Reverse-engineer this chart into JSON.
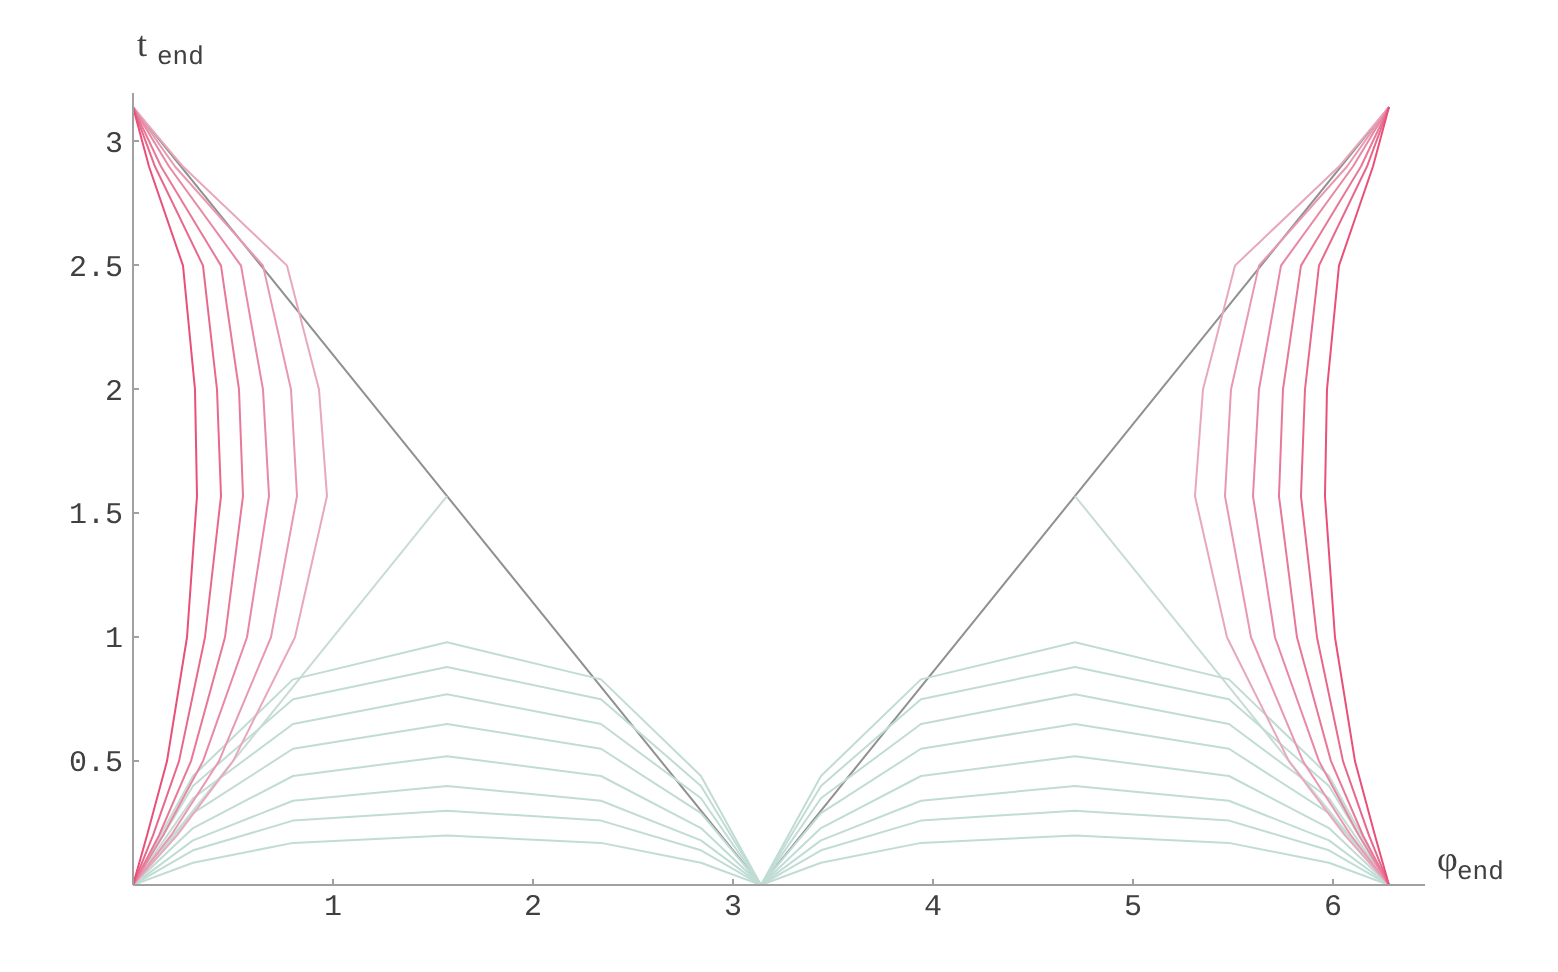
{
  "chart_data": {
    "type": "line",
    "xlabel": "φ$_{end}$",
    "ylabel": "t$_{end}$",
    "xlim": [
      0,
      6.46
    ],
    "ylim": [
      0,
      3.2
    ],
    "xticks": [
      1,
      2,
      3,
      4,
      5,
      6
    ],
    "yticks": [
      0.5,
      1,
      1.5,
      2,
      2.5,
      3
    ],
    "grid": false,
    "marker": "none",
    "line_style": "solid",
    "series": [
      {
        "color": "#909090",
        "x": [
          0,
          3.14
        ],
        "values": [
          3.14,
          0
        ]
      },
      {
        "color": "#909090",
        "x": [
          3.14,
          6.28
        ],
        "values": [
          0,
          3.14
        ]
      },
      {
        "color": "#c8dcd4",
        "x": [
          0,
          1.57
        ],
        "values": [
          0,
          1.57
        ]
      },
      {
        "color": "#c8dcd4",
        "x": [
          4.71,
          6.28
        ],
        "values": [
          1.57,
          0
        ]
      },
      {
        "color": "#c0dcd4",
        "x": [
          0,
          0.3,
          0.8,
          1.57,
          2.34,
          2.84,
          3.14
        ],
        "values": [
          0,
          0.09,
          0.17,
          0.2,
          0.17,
          0.09,
          0
        ]
      },
      {
        "color": "#c0dcd4",
        "x": [
          0,
          0.3,
          0.8,
          1.57,
          2.34,
          2.84,
          3.14
        ],
        "values": [
          0,
          0.14,
          0.26,
          0.3,
          0.26,
          0.14,
          0
        ]
      },
      {
        "color": "#c0dcd4",
        "x": [
          0,
          0.3,
          0.8,
          1.57,
          2.34,
          2.84,
          3.14
        ],
        "values": [
          0,
          0.18,
          0.34,
          0.4,
          0.34,
          0.18,
          0
        ]
      },
      {
        "color": "#c0dcd4",
        "x": [
          0,
          0.3,
          0.8,
          1.57,
          2.34,
          2.84,
          3.14
        ],
        "values": [
          0,
          0.23,
          0.44,
          0.52,
          0.44,
          0.23,
          0
        ]
      },
      {
        "color": "#c0dcd4",
        "x": [
          0,
          0.3,
          0.8,
          1.57,
          2.34,
          2.84,
          3.14
        ],
        "values": [
          0,
          0.29,
          0.55,
          0.65,
          0.55,
          0.29,
          0
        ]
      },
      {
        "color": "#c0dcd4",
        "x": [
          0,
          0.3,
          0.8,
          1.57,
          2.34,
          2.84,
          3.14
        ],
        "values": [
          0,
          0.35,
          0.65,
          0.77,
          0.65,
          0.35,
          0
        ]
      },
      {
        "color": "#c0dcd4",
        "x": [
          0,
          0.3,
          0.8,
          1.57,
          2.34,
          2.84,
          3.14
        ],
        "values": [
          0,
          0.4,
          0.75,
          0.88,
          0.75,
          0.4,
          0
        ]
      },
      {
        "color": "#c0dcd4",
        "x": [
          0,
          0.3,
          0.8,
          1.57,
          2.34,
          2.84,
          3.14
        ],
        "values": [
          0,
          0.44,
          0.83,
          0.98,
          0.83,
          0.44,
          0
        ]
      },
      {
        "color": "#c0dcd4",
        "x": [
          3.14,
          3.44,
          3.94,
          4.71,
          5.48,
          5.98,
          6.28
        ],
        "values": [
          0,
          0.09,
          0.17,
          0.2,
          0.17,
          0.09,
          0
        ]
      },
      {
        "color": "#c0dcd4",
        "x": [
          3.14,
          3.44,
          3.94,
          4.71,
          5.48,
          5.98,
          6.28
        ],
        "values": [
          0,
          0.14,
          0.26,
          0.3,
          0.26,
          0.14,
          0
        ]
      },
      {
        "color": "#c0dcd4",
        "x": [
          3.14,
          3.44,
          3.94,
          4.71,
          5.48,
          5.98,
          6.28
        ],
        "values": [
          0,
          0.18,
          0.34,
          0.4,
          0.34,
          0.18,
          0
        ]
      },
      {
        "color": "#c0dcd4",
        "x": [
          3.14,
          3.44,
          3.94,
          4.71,
          5.48,
          5.98,
          6.28
        ],
        "values": [
          0,
          0.23,
          0.44,
          0.52,
          0.44,
          0.23,
          0
        ]
      },
      {
        "color": "#c0dcd4",
        "x": [
          3.14,
          3.44,
          3.94,
          4.71,
          5.48,
          5.98,
          6.28
        ],
        "values": [
          0,
          0.29,
          0.55,
          0.65,
          0.55,
          0.29,
          0
        ]
      },
      {
        "color": "#c0dcd4",
        "x": [
          3.14,
          3.44,
          3.94,
          4.71,
          5.48,
          5.98,
          6.28
        ],
        "values": [
          0,
          0.35,
          0.65,
          0.77,
          0.65,
          0.35,
          0
        ]
      },
      {
        "color": "#c0dcd4",
        "x": [
          3.14,
          3.44,
          3.94,
          4.71,
          5.48,
          5.98,
          6.28
        ],
        "values": [
          0,
          0.4,
          0.75,
          0.88,
          0.75,
          0.4,
          0
        ]
      },
      {
        "color": "#c0dcd4",
        "x": [
          3.14,
          3.44,
          3.94,
          4.71,
          5.48,
          5.98,
          6.28
        ],
        "values": [
          0,
          0.44,
          0.83,
          0.98,
          0.83,
          0.44,
          0
        ]
      },
      {
        "color": "#e8a8bc",
        "x": [
          0,
          0.25,
          0.77,
          0.93,
          0.97,
          0.81,
          0.5,
          0.22,
          0
        ],
        "values": [
          3.14,
          2.9,
          2.5,
          2.0,
          1.57,
          1.0,
          0.5,
          0.2,
          0
        ]
      },
      {
        "color": "#e898b0",
        "x": [
          0,
          0.21,
          0.65,
          0.79,
          0.82,
          0.69,
          0.43,
          0.19,
          0
        ],
        "values": [
          3.14,
          2.9,
          2.5,
          2.0,
          1.57,
          1.0,
          0.5,
          0.2,
          0
        ]
      },
      {
        "color": "#e888a4",
        "x": [
          0,
          0.18,
          0.54,
          0.65,
          0.68,
          0.57,
          0.35,
          0.15,
          0
        ],
        "values": [
          3.14,
          2.9,
          2.5,
          2.0,
          1.57,
          1.0,
          0.5,
          0.2,
          0
        ]
      },
      {
        "color": "#e87898",
        "x": [
          0,
          0.14,
          0.44,
          0.53,
          0.55,
          0.46,
          0.29,
          0.13,
          0
        ],
        "values": [
          3.14,
          2.9,
          2.5,
          2.0,
          1.57,
          1.0,
          0.5,
          0.2,
          0
        ]
      },
      {
        "color": "#e8688c",
        "x": [
          0,
          0.11,
          0.35,
          0.42,
          0.44,
          0.36,
          0.23,
          0.1,
          0
        ],
        "values": [
          3.14,
          2.9,
          2.5,
          2.0,
          1.57,
          1.0,
          0.5,
          0.2,
          0
        ]
      },
      {
        "color": "#e85078",
        "x": [
          0,
          0.08,
          0.25,
          0.31,
          0.32,
          0.27,
          0.17,
          0.07,
          0
        ],
        "values": [
          3.14,
          2.9,
          2.5,
          2.0,
          1.57,
          1.0,
          0.5,
          0.2,
          0
        ]
      },
      {
        "color": "#e8a8bc",
        "x": [
          6.28,
          6.03,
          5.51,
          5.35,
          5.31,
          5.47,
          5.78,
          6.06,
          6.28
        ],
        "values": [
          3.14,
          2.9,
          2.5,
          2.0,
          1.57,
          1.0,
          0.5,
          0.2,
          0
        ]
      },
      {
        "color": "#e898b0",
        "x": [
          6.28,
          6.07,
          5.63,
          5.49,
          5.46,
          5.59,
          5.85,
          6.09,
          6.28
        ],
        "values": [
          3.14,
          2.9,
          2.5,
          2.0,
          1.57,
          1.0,
          0.5,
          0.2,
          0
        ]
      },
      {
        "color": "#e888a4",
        "x": [
          6.28,
          6.1,
          5.74,
          5.63,
          5.6,
          5.71,
          5.93,
          6.13,
          6.28
        ],
        "values": [
          3.14,
          2.9,
          2.5,
          2.0,
          1.57,
          1.0,
          0.5,
          0.2,
          0
        ]
      },
      {
        "color": "#e87898",
        "x": [
          6.28,
          6.14,
          5.84,
          5.75,
          5.73,
          5.82,
          5.99,
          6.15,
          6.28
        ],
        "values": [
          3.14,
          2.9,
          2.5,
          2.0,
          1.57,
          1.0,
          0.5,
          0.2,
          0
        ]
      },
      {
        "color": "#e8688c",
        "x": [
          6.28,
          6.17,
          5.93,
          5.86,
          5.84,
          5.92,
          6.05,
          6.18,
          6.28
        ],
        "values": [
          3.14,
          2.9,
          2.5,
          2.0,
          1.57,
          1.0,
          0.5,
          0.2,
          0
        ]
      },
      {
        "color": "#e85078",
        "x": [
          6.28,
          6.2,
          6.03,
          5.97,
          5.96,
          6.01,
          6.11,
          6.21,
          6.28
        ],
        "values": [
          3.14,
          2.9,
          2.5,
          2.0,
          1.57,
          1.0,
          0.5,
          0.2,
          0
        ]
      }
    ]
  }
}
